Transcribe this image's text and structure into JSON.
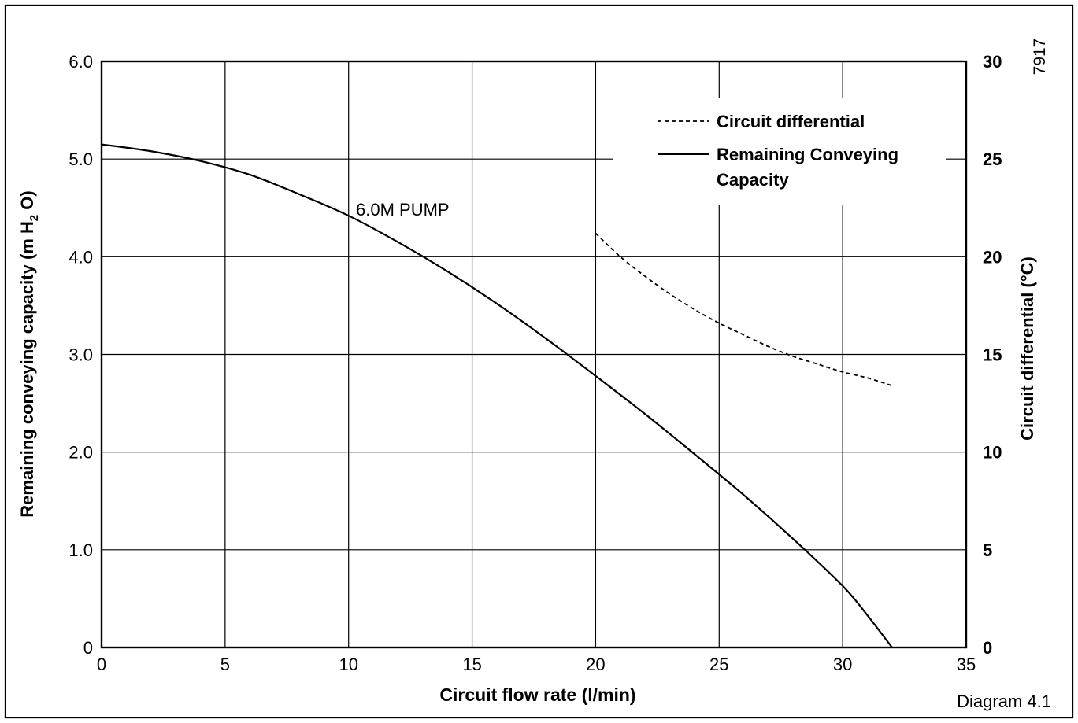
{
  "chart_data": {
    "type": "line",
    "figure_id": "7917",
    "caption": "Diagram 4.1",
    "annotation": "6.0M PUMP",
    "x_axis": {
      "label": "Circuit flow rate (l/min)",
      "range": [
        0,
        35
      ],
      "ticks": [
        0,
        5,
        10,
        15,
        20,
        25,
        30,
        35
      ],
      "tick_labels": [
        "0",
        "5",
        "10",
        "15",
        "20",
        "25",
        "30",
        "35"
      ]
    },
    "y_left": {
      "label_pre": "Remaining conveying capacity (m H",
      "label_sub": "2",
      "label_post": " O)",
      "range": [
        0,
        6
      ],
      "ticks": [
        0,
        1,
        2,
        3,
        4,
        5,
        6
      ],
      "tick_labels": [
        "0",
        "1.0",
        "2.0",
        "3.0",
        "4.0",
        "5.0",
        "6.0"
      ]
    },
    "y_right": {
      "label": "Circuit differential (°C)",
      "range": [
        0,
        30
      ],
      "ticks": [
        0,
        5,
        10,
        15,
        20,
        25,
        30
      ],
      "tick_labels": [
        "0",
        "5",
        "10",
        "15",
        "20",
        "25",
        "30"
      ]
    },
    "grid": true,
    "legend_position": "top-right",
    "legend": [
      {
        "label": "Circuit differential",
        "style": "dashed"
      },
      {
        "label_line1": "Remaining Conveying",
        "label_line2": "Capacity",
        "style": "solid"
      }
    ],
    "series": [
      {
        "name": "Remaining Conveying Capacity",
        "axis": "left",
        "style": "solid",
        "x": [
          0,
          2,
          4,
          6,
          8,
          10,
          12,
          14,
          16,
          18,
          20,
          22,
          24,
          26,
          28,
          30,
          31,
          32
        ],
        "y": [
          5.15,
          5.08,
          4.98,
          4.84,
          4.64,
          4.42,
          4.15,
          3.85,
          3.52,
          3.16,
          2.78,
          2.39,
          1.98,
          1.56,
          1.11,
          0.63,
          0.33,
          0.0
        ]
      },
      {
        "name": "Circuit differential",
        "axis": "right",
        "style": "dashed",
        "x": [
          20,
          21,
          22,
          23,
          24,
          25,
          26,
          27,
          28,
          29,
          30,
          31,
          32
        ],
        "y": [
          21.2,
          20.0,
          19.0,
          18.1,
          17.3,
          16.6,
          16.0,
          15.4,
          14.9,
          14.5,
          14.1,
          13.8,
          13.4
        ]
      }
    ]
  }
}
